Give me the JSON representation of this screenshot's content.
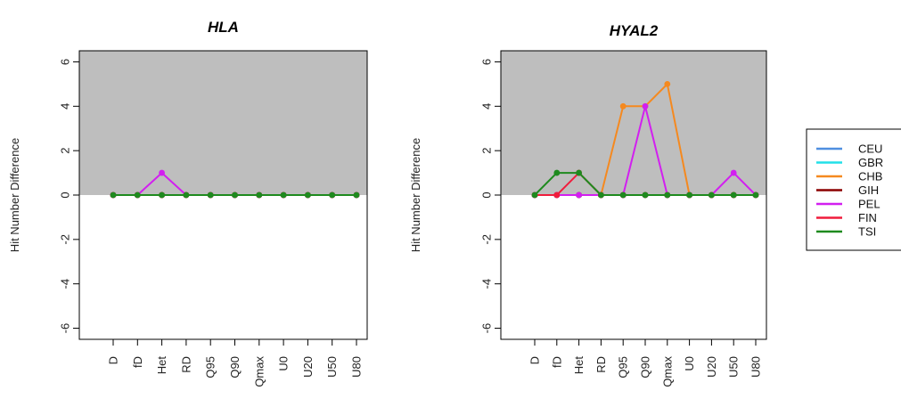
{
  "chart_data": [
    {
      "type": "line",
      "title": "HLA",
      "ylabel": "Hit Number Difference",
      "xlabel": "",
      "categories": [
        "D",
        "fD",
        "Het",
        "RD",
        "Q95",
        "Q90",
        "Qmax",
        "U0",
        "U20",
        "U50",
        "U80"
      ],
      "ylim": [
        -6.5,
        6.5
      ],
      "yticks": [
        -6,
        -4,
        -2,
        0,
        2,
        4,
        6
      ],
      "positive_region_color": "#bebebe",
      "series": [
        {
          "name": "CEU",
          "color": "#4f8fe0",
          "values": [
            0,
            0,
            0,
            0,
            0,
            0,
            0,
            0,
            0,
            0,
            0
          ]
        },
        {
          "name": "GBR",
          "color": "#22e0e8",
          "values": [
            0,
            0,
            0,
            0,
            0,
            0,
            0,
            0,
            0,
            0,
            0
          ]
        },
        {
          "name": "CHB",
          "color": "#f5891f",
          "values": [
            0,
            0,
            0,
            0,
            0,
            0,
            0,
            0,
            0,
            0,
            0
          ]
        },
        {
          "name": "GIH",
          "color": "#8b0000",
          "values": [
            0,
            0,
            0,
            0,
            0,
            0,
            0,
            0,
            0,
            0,
            0
          ]
        },
        {
          "name": "PEL",
          "color": "#d21ff0",
          "values": [
            0,
            0,
            1,
            0,
            0,
            0,
            0,
            0,
            0,
            0,
            0
          ]
        },
        {
          "name": "FIN",
          "color": "#f01c3c",
          "values": [
            0,
            0,
            0,
            0,
            0,
            0,
            0,
            0,
            0,
            0,
            0
          ]
        },
        {
          "name": "TSI",
          "color": "#1e8a1e",
          "values": [
            0,
            0,
            0,
            0,
            0,
            0,
            0,
            0,
            0,
            0,
            0
          ]
        }
      ]
    },
    {
      "type": "line",
      "title": "HYAL2",
      "ylabel": "Hit Number Difference",
      "xlabel": "",
      "categories": [
        "D",
        "fD",
        "Het",
        "RD",
        "Q95",
        "Q90",
        "Qmax",
        "U0",
        "U20",
        "U50",
        "U80"
      ],
      "ylim": [
        -6.5,
        6.5
      ],
      "yticks": [
        -6,
        -4,
        -2,
        0,
        2,
        4,
        6
      ],
      "positive_region_color": "#bebebe",
      "series": [
        {
          "name": "CEU",
          "color": "#4f8fe0",
          "values": [
            0,
            0,
            0,
            0,
            0,
            0,
            0,
            0,
            0,
            0,
            0
          ]
        },
        {
          "name": "GBR",
          "color": "#22e0e8",
          "values": [
            0,
            0,
            0,
            0,
            0,
            0,
            0,
            0,
            0,
            0,
            0
          ]
        },
        {
          "name": "CHB",
          "color": "#f5891f",
          "values": [
            0,
            0,
            0,
            0,
            4,
            4,
            5,
            0,
            0,
            0,
            0
          ]
        },
        {
          "name": "GIH",
          "color": "#8b0000",
          "values": [
            0,
            0,
            0,
            0,
            0,
            0,
            0,
            0,
            0,
            0,
            0
          ]
        },
        {
          "name": "PEL",
          "color": "#d21ff0",
          "values": [
            0,
            0,
            0,
            0,
            0,
            4,
            0,
            0,
            0,
            1,
            0
          ]
        },
        {
          "name": "FIN",
          "color": "#f01c3c",
          "values": [
            0,
            0,
            1,
            0,
            0,
            0,
            0,
            0,
            0,
            0,
            0
          ]
        },
        {
          "name": "TSI",
          "color": "#1e8a1e",
          "values": [
            0,
            1,
            1,
            0,
            0,
            0,
            0,
            0,
            0,
            0,
            0
          ]
        }
      ]
    }
  ],
  "legend": {
    "placement": "right",
    "entries": [
      {
        "label": "CEU",
        "color": "#4f8fe0"
      },
      {
        "label": "GBR",
        "color": "#22e0e8"
      },
      {
        "label": "CHB",
        "color": "#f5891f"
      },
      {
        "label": "GIH",
        "color": "#8b0000"
      },
      {
        "label": "PEL",
        "color": "#d21ff0"
      },
      {
        "label": "FIN",
        "color": "#f01c3c"
      },
      {
        "label": "TSI",
        "color": "#1e8a1e"
      }
    ]
  }
}
